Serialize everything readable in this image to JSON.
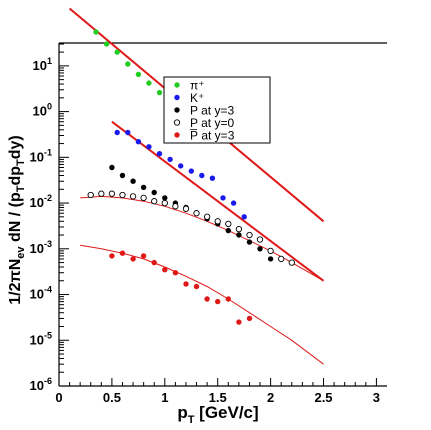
{
  "chart_data": {
    "type": "scatter",
    "xlabel": "p_T [GeV/c]",
    "ylabel": "1/2πN_ev dN / (p_T dp_T dy)",
    "xlim": [
      0,
      3.1
    ],
    "ylim_log10": [
      -6,
      1.5
    ],
    "log_y": true,
    "x_ticks": [
      "0",
      "0.5",
      "1",
      "1.5",
      "2",
      "2.5",
      "3"
    ],
    "y_tick_exponents": [
      "1",
      "0",
      "-1",
      "-2",
      "-3",
      "-4",
      "-5",
      "-6"
    ],
    "legend_position": "top-center",
    "series": [
      {
        "name": "π⁺",
        "marker": "filled-circle",
        "color": "#22cc22",
        "x": [
          0.35,
          0.45,
          0.55,
          0.65,
          0.75,
          0.85,
          0.95,
          1.05,
          1.15,
          1.25,
          1.35,
          1.45,
          1.55
        ],
        "y": [
          55,
          30,
          20,
          11,
          6.5,
          4.2,
          2.6,
          1.6,
          1.0,
          0.8,
          0.5,
          0.5,
          0.3
        ]
      },
      {
        "name": "K⁺",
        "marker": "filled-circle",
        "color": "#1a1aee",
        "x": [
          0.55,
          0.65,
          0.75,
          0.85,
          0.95,
          1.05,
          1.15,
          1.25,
          1.35,
          1.45,
          1.55,
          1.65,
          1.75
        ],
        "y": [
          0.35,
          0.35,
          0.22,
          0.17,
          0.12,
          0.09,
          0.065,
          0.05,
          0.04,
          0.035,
          0.013,
          0.01,
          0.005
        ]
      },
      {
        "name": "P at y=3",
        "marker": "filled-circle",
        "color": "#000000",
        "x": [
          0.5,
          0.6,
          0.7,
          0.8,
          0.9,
          1.0,
          1.1,
          1.2,
          1.3,
          1.4,
          1.5,
          1.6,
          1.7,
          1.8,
          1.9,
          2.0
        ],
        "y": [
          0.06,
          0.04,
          0.03,
          0.022,
          0.017,
          0.013,
          0.01,
          0.008,
          0.006,
          0.0045,
          0.0035,
          0.0025,
          0.002,
          0.0014,
          0.001,
          0.0006
        ]
      },
      {
        "name": "P at y=0",
        "marker": "open-circle",
        "color": "#000000",
        "x": [
          0.3,
          0.4,
          0.5,
          0.6,
          0.7,
          0.8,
          0.9,
          1.0,
          1.1,
          1.2,
          1.3,
          1.4,
          1.5,
          1.6,
          1.7,
          1.8,
          1.9,
          2.0,
          2.1,
          2.2
        ],
        "y": [
          0.015,
          0.016,
          0.016,
          0.015,
          0.014,
          0.013,
          0.011,
          0.01,
          0.0085,
          0.0075,
          0.006,
          0.005,
          0.004,
          0.0035,
          0.0027,
          0.002,
          0.0016,
          0.0009,
          0.0006,
          0.0005
        ]
      },
      {
        "name": "P̅ at y=3",
        "marker": "filled-circle",
        "color": "#e01818",
        "x": [
          0.5,
          0.6,
          0.7,
          0.8,
          0.9,
          1.0,
          1.1,
          1.2,
          1.3,
          1.4,
          1.5,
          1.6,
          1.7,
          1.8
        ],
        "y": [
          0.0007,
          0.0008,
          0.0006,
          0.0007,
          0.0005,
          0.00035,
          0.0003,
          0.00017,
          0.00015,
          8e-05,
          7e-05,
          8e-05,
          2.5e-05,
          3e-05
        ]
      }
    ],
    "fits": [
      {
        "color": "#e01818",
        "width": 2,
        "x": [
          0.1,
          2.5
        ],
        "y": [
          180,
          0.004
        ]
      },
      {
        "color": "#e01818",
        "width": 2,
        "x": [
          0.5,
          2.5
        ],
        "y": [
          0.6,
          0.0002
        ]
      },
      {
        "color": "#e01818",
        "width": 1,
        "x": [
          0.2,
          0.4,
          0.6,
          0.8,
          1.0,
          1.2,
          1.4,
          1.6,
          1.8,
          2.0,
          2.2,
          2.5
        ],
        "y": [
          0.013,
          0.014,
          0.013,
          0.011,
          0.0085,
          0.006,
          0.004,
          0.0025,
          0.0015,
          0.0009,
          0.0005,
          0.0002
        ]
      },
      {
        "color": "#e01818",
        "width": 1,
        "x": [
          0.2,
          0.4,
          0.6,
          0.8,
          1.0,
          1.2,
          1.4,
          1.6,
          1.8,
          2.0,
          2.2,
          2.5
        ],
        "y": [
          0.0012,
          0.001,
          0.0008,
          0.0006,
          0.0004,
          0.00025,
          0.00015,
          8e-05,
          4e-05,
          2e-05,
          1e-05,
          3e-06
        ]
      }
    ]
  }
}
